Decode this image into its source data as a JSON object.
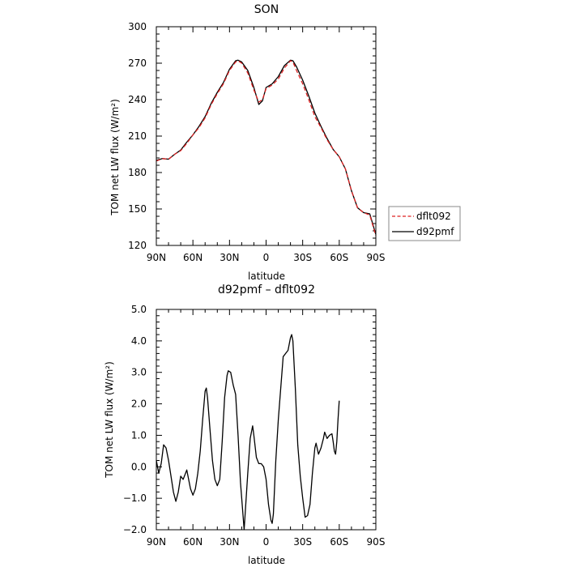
{
  "chart_data": [
    {
      "type": "line",
      "title": "SON",
      "xlabel": "latitude",
      "ylabel": "TOM net LW flux (W/m²)",
      "xlim": [
        90,
        -90
      ],
      "ylim": [
        120,
        300
      ],
      "x_ticks": [
        "90N",
        "60N",
        "30N",
        "0",
        "30S",
        "60S",
        "90S"
      ],
      "y_ticks": [
        "120",
        "150",
        "180",
        "210",
        "240",
        "270",
        "300"
      ],
      "y_tick_values": [
        120,
        150,
        180,
        210,
        240,
        270,
        300
      ],
      "legend": "right",
      "series": [
        {
          "name": "dflt092",
          "color": "#dd2222",
          "style": "dashed",
          "points": [
            [
              90,
              189.5
            ],
            [
              85,
              191.5
            ],
            [
              80,
              191
            ],
            [
              75,
              195
            ],
            [
              70,
              198
            ],
            [
              65,
              204
            ],
            [
              60,
              211
            ],
            [
              55,
              217
            ],
            [
              50,
              225
            ],
            [
              45,
              236
            ],
            [
              40,
              245
            ],
            [
              35,
              253
            ],
            [
              30,
              264
            ],
            [
              25,
              271
            ],
            [
              23,
              272
            ],
            [
              20,
              270
            ],
            [
              15,
              262
            ],
            [
              10,
              248
            ],
            [
              6,
              238
            ],
            [
              3,
              240
            ],
            [
              0,
              249
            ],
            [
              -5,
              252
            ],
            [
              -10,
              257
            ],
            [
              -15,
              266
            ],
            [
              -20,
              272
            ],
            [
              -22,
              271
            ],
            [
              -25,
              264
            ],
            [
              -30,
              253
            ],
            [
              -35,
              240
            ],
            [
              -40,
              226
            ],
            [
              -45,
              217
            ],
            [
              -50,
              207
            ],
            [
              -55,
              199
            ],
            [
              -60,
              193
            ],
            [
              -65,
              183
            ],
            [
              -70,
              165
            ],
            [
              -75,
              151
            ],
            [
              -80,
              147
            ],
            [
              -85,
              145
            ],
            [
              -90,
              128
            ]
          ]
        },
        {
          "name": "d92pmf",
          "color": "#000000",
          "style": "solid",
          "points": [
            [
              90,
              190
            ],
            [
              85,
              191.5
            ],
            [
              80,
              191
            ],
            [
              75,
              195
            ],
            [
              70,
              198.5
            ],
            [
              65,
              205
            ],
            [
              60,
              211
            ],
            [
              55,
              218
            ],
            [
              50,
              226
            ],
            [
              45,
              237
            ],
            [
              40,
              246
            ],
            [
              35,
              254
            ],
            [
              30,
              265
            ],
            [
              25,
              272
            ],
            [
              23,
              272.5
            ],
            [
              20,
              271
            ],
            [
              15,
              264
            ],
            [
              10,
              250
            ],
            [
              6,
              236
            ],
            [
              3,
              239
            ],
            [
              0,
              250
            ],
            [
              -5,
              253
            ],
            [
              -10,
              259
            ],
            [
              -15,
              268
            ],
            [
              -20,
              272.5
            ],
            [
              -22,
              272
            ],
            [
              -25,
              267
            ],
            [
              -30,
              256
            ],
            [
              -35,
              243
            ],
            [
              -40,
              229
            ],
            [
              -45,
              218
            ],
            [
              -50,
              208
            ],
            [
              -55,
              199
            ],
            [
              -60,
              193
            ],
            [
              -65,
              183
            ],
            [
              -70,
              165
            ],
            [
              -75,
              151
            ],
            [
              -80,
              147
            ],
            [
              -85,
              146
            ],
            [
              -90,
              129
            ]
          ]
        }
      ]
    },
    {
      "type": "line",
      "title": "d92pmf – dflt092",
      "xlabel": "latitude",
      "ylabel": "TOM net LW flux (W/m²)",
      "xlim": [
        90,
        -90
      ],
      "ylim": [
        -2.0,
        5.0
      ],
      "x_ticks": [
        "90N",
        "60N",
        "30N",
        "0",
        "30S",
        "60S",
        "90S"
      ],
      "y_ticks": [
        "−2.0",
        "−1.0",
        "0.0",
        "1.0",
        "2.0",
        "3.0",
        "4.0",
        "5.0"
      ],
      "y_tick_values": [
        -2,
        -1,
        0,
        1,
        2,
        3,
        4,
        5
      ],
      "series": [
        {
          "color": "#000000",
          "style": "solid",
          "points": [
            [
              90,
              0.2
            ],
            [
              88,
              -0.2
            ],
            [
              86,
              0.1
            ],
            [
              84,
              0.7
            ],
            [
              82,
              0.6
            ],
            [
              80,
              0.2
            ],
            [
              78,
              -0.3
            ],
            [
              76,
              -0.8
            ],
            [
              74,
              -1.1
            ],
            [
              72,
              -0.8
            ],
            [
              70,
              -0.3
            ],
            [
              68,
              -0.4
            ],
            [
              66,
              -0.2
            ],
            [
              65,
              -0.1
            ],
            [
              64,
              -0.3
            ],
            [
              62,
              -0.7
            ],
            [
              60,
              -0.9
            ],
            [
              58,
              -0.7
            ],
            [
              56,
              -0.2
            ],
            [
              54,
              0.5
            ],
            [
              52,
              1.5
            ],
            [
              50,
              2.4
            ],
            [
              49,
              2.5
            ],
            [
              48,
              2.2
            ],
            [
              46,
              1.2
            ],
            [
              44,
              0.2
            ],
            [
              42,
              -0.4
            ],
            [
              40,
              -0.6
            ],
            [
              38,
              -0.4
            ],
            [
              36,
              0.8
            ],
            [
              34,
              2.2
            ],
            [
              32,
              2.9
            ],
            [
              31,
              3.05
            ],
            [
              29,
              3.0
            ],
            [
              27,
              2.6
            ],
            [
              25,
              2.3
            ],
            [
              23,
              1.0
            ],
            [
              21,
              -0.5
            ],
            [
              19,
              -1.5
            ],
            [
              18,
              -2.0
            ],
            [
              17,
              -1.4
            ],
            [
              15,
              -0.2
            ],
            [
              13,
              0.9
            ],
            [
              11,
              1.3
            ],
            [
              10,
              1.0
            ],
            [
              8,
              0.3
            ],
            [
              6,
              0.1
            ],
            [
              4,
              0.1
            ],
            [
              2,
              0.0
            ],
            [
              0,
              -0.4
            ],
            [
              -2,
              -1.2
            ],
            [
              -4,
              -1.7
            ],
            [
              -5,
              -1.8
            ],
            [
              -6,
              -1.5
            ],
            [
              -8,
              0.2
            ],
            [
              -10,
              1.5
            ],
            [
              -12,
              2.5
            ],
            [
              -14,
              3.5
            ],
            [
              -16,
              3.6
            ],
            [
              -18,
              3.7
            ],
            [
              -20,
              4.1
            ],
            [
              -21,
              4.2
            ],
            [
              -22,
              4.0
            ],
            [
              -24,
              2.5
            ],
            [
              -26,
              0.7
            ],
            [
              -28,
              -0.3
            ],
            [
              -30,
              -1.0
            ],
            [
              -32,
              -1.6
            ],
            [
              -34,
              -1.55
            ],
            [
              -36,
              -1.2
            ],
            [
              -38,
              -0.2
            ],
            [
              -40,
              0.6
            ],
            [
              -41,
              0.75
            ],
            [
              -43,
              0.4
            ],
            [
              -45,
              0.6
            ],
            [
              -47,
              0.9
            ],
            [
              -48,
              1.1
            ],
            [
              -50,
              0.9
            ],
            [
              -52,
              1.0
            ],
            [
              -54,
              1.05
            ],
            [
              -55,
              0.8
            ],
            [
              -56,
              0.5
            ],
            [
              -57,
              0.4
            ],
            [
              -58,
              0.8
            ],
            [
              -59,
              1.5
            ],
            [
              -60,
              2.1
            ]
          ]
        }
      ]
    }
  ]
}
